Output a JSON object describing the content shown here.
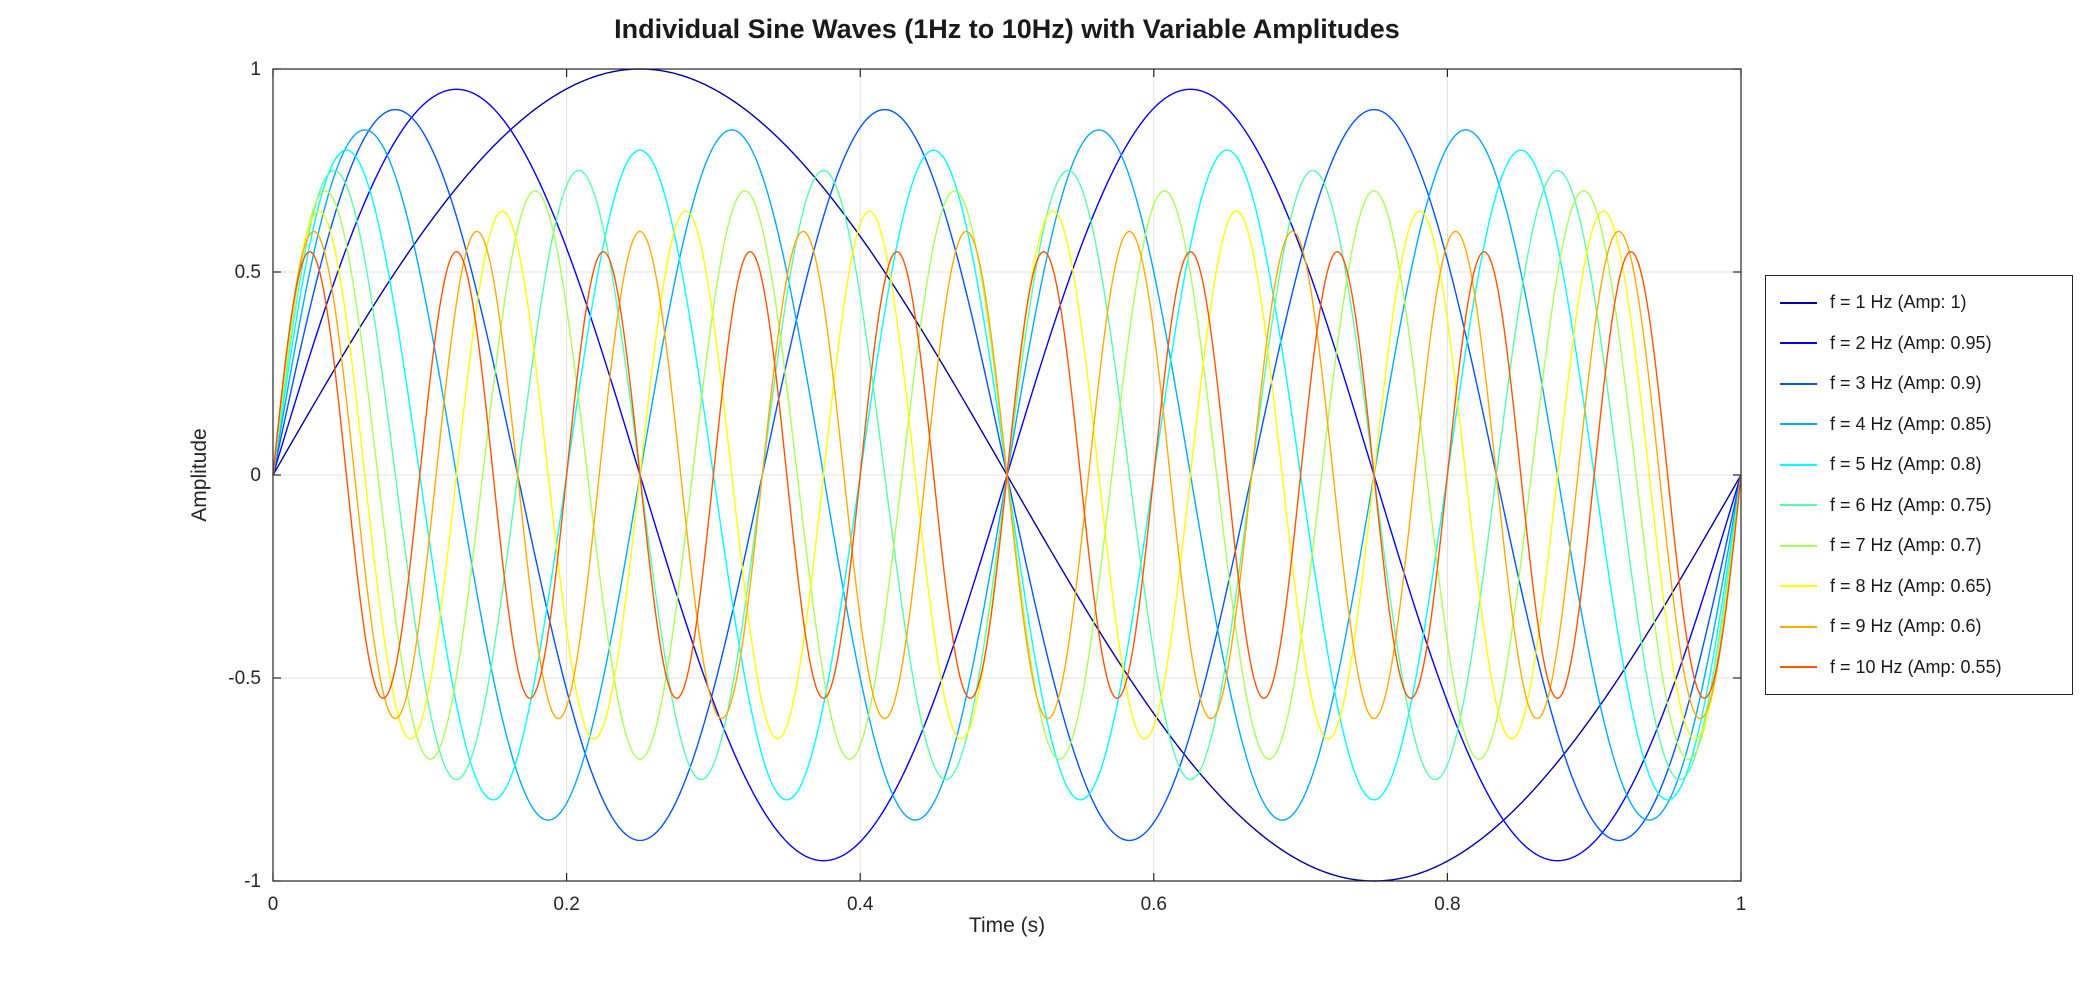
{
  "figure": {
    "background": "#FFFFFF"
  },
  "chart_data": {
    "type": "line",
    "title": "Individual Sine Waves (1Hz to 10Hz) with Variable Amplitudes",
    "xlabel": "Time (s)",
    "ylabel": "Amplitude",
    "xlim": [
      0,
      1
    ],
    "ylim": [
      -1,
      1
    ],
    "xticks": [
      0,
      0.2,
      0.4,
      0.6,
      0.8,
      1
    ],
    "xtick_labels": [
      "0",
      "0.2",
      "0.4",
      "0.6",
      "0.8",
      "1"
    ],
    "yticks": [
      -1,
      -0.5,
      0,
      0.5,
      1
    ],
    "ytick_labels": [
      "-1",
      "-0.5",
      "0",
      "0.5",
      "1"
    ],
    "grid": true,
    "legend_position": "right-outside",
    "function": "y(t) = amplitude * sin(2 * pi * frequency_hz * t), t in [0, 1] s",
    "series": [
      {
        "name": "f = 1 Hz (Amp: 1)",
        "frequency_hz": 1,
        "amplitude": 1.0,
        "color": "#0000AA"
      },
      {
        "name": "f = 2 Hz (Amp: 0.95)",
        "frequency_hz": 2,
        "amplitude": 0.95,
        "color": "#0000FF"
      },
      {
        "name": "f = 3 Hz (Amp: 0.9)",
        "frequency_hz": 3,
        "amplitude": 0.9,
        "color": "#0055FF"
      },
      {
        "name": "f = 4 Hz (Amp: 0.85)",
        "frequency_hz": 4,
        "amplitude": 0.85,
        "color": "#00AAFF"
      },
      {
        "name": "f = 5 Hz (Amp: 0.8)",
        "frequency_hz": 5,
        "amplitude": 0.8,
        "color": "#00FFFF"
      },
      {
        "name": "f = 6 Hz (Amp: 0.75)",
        "frequency_hz": 6,
        "amplitude": 0.75,
        "color": "#55FFAA"
      },
      {
        "name": "f = 7 Hz (Amp: 0.7)",
        "frequency_hz": 7,
        "amplitude": 0.7,
        "color": "#AAFF55"
      },
      {
        "name": "f = 8 Hz (Amp: 0.65)",
        "frequency_hz": 8,
        "amplitude": 0.65,
        "color": "#FFFF00"
      },
      {
        "name": "f = 9 Hz (Amp: 0.6)",
        "frequency_hz": 9,
        "amplitude": 0.6,
        "color": "#FFAA00"
      },
      {
        "name": "f = 10 Hz (Amp: 0.55)",
        "frequency_hz": 10,
        "amplitude": 0.55,
        "color": "#FF5500"
      }
    ]
  },
  "style": {
    "axis_color": "#262626",
    "tick_label_color": "#262626",
    "grid_color": "#E1E1E1",
    "series_line_width": 1.4,
    "legend_border_color": "#262626",
    "legend_background": "#FFFFFF"
  }
}
